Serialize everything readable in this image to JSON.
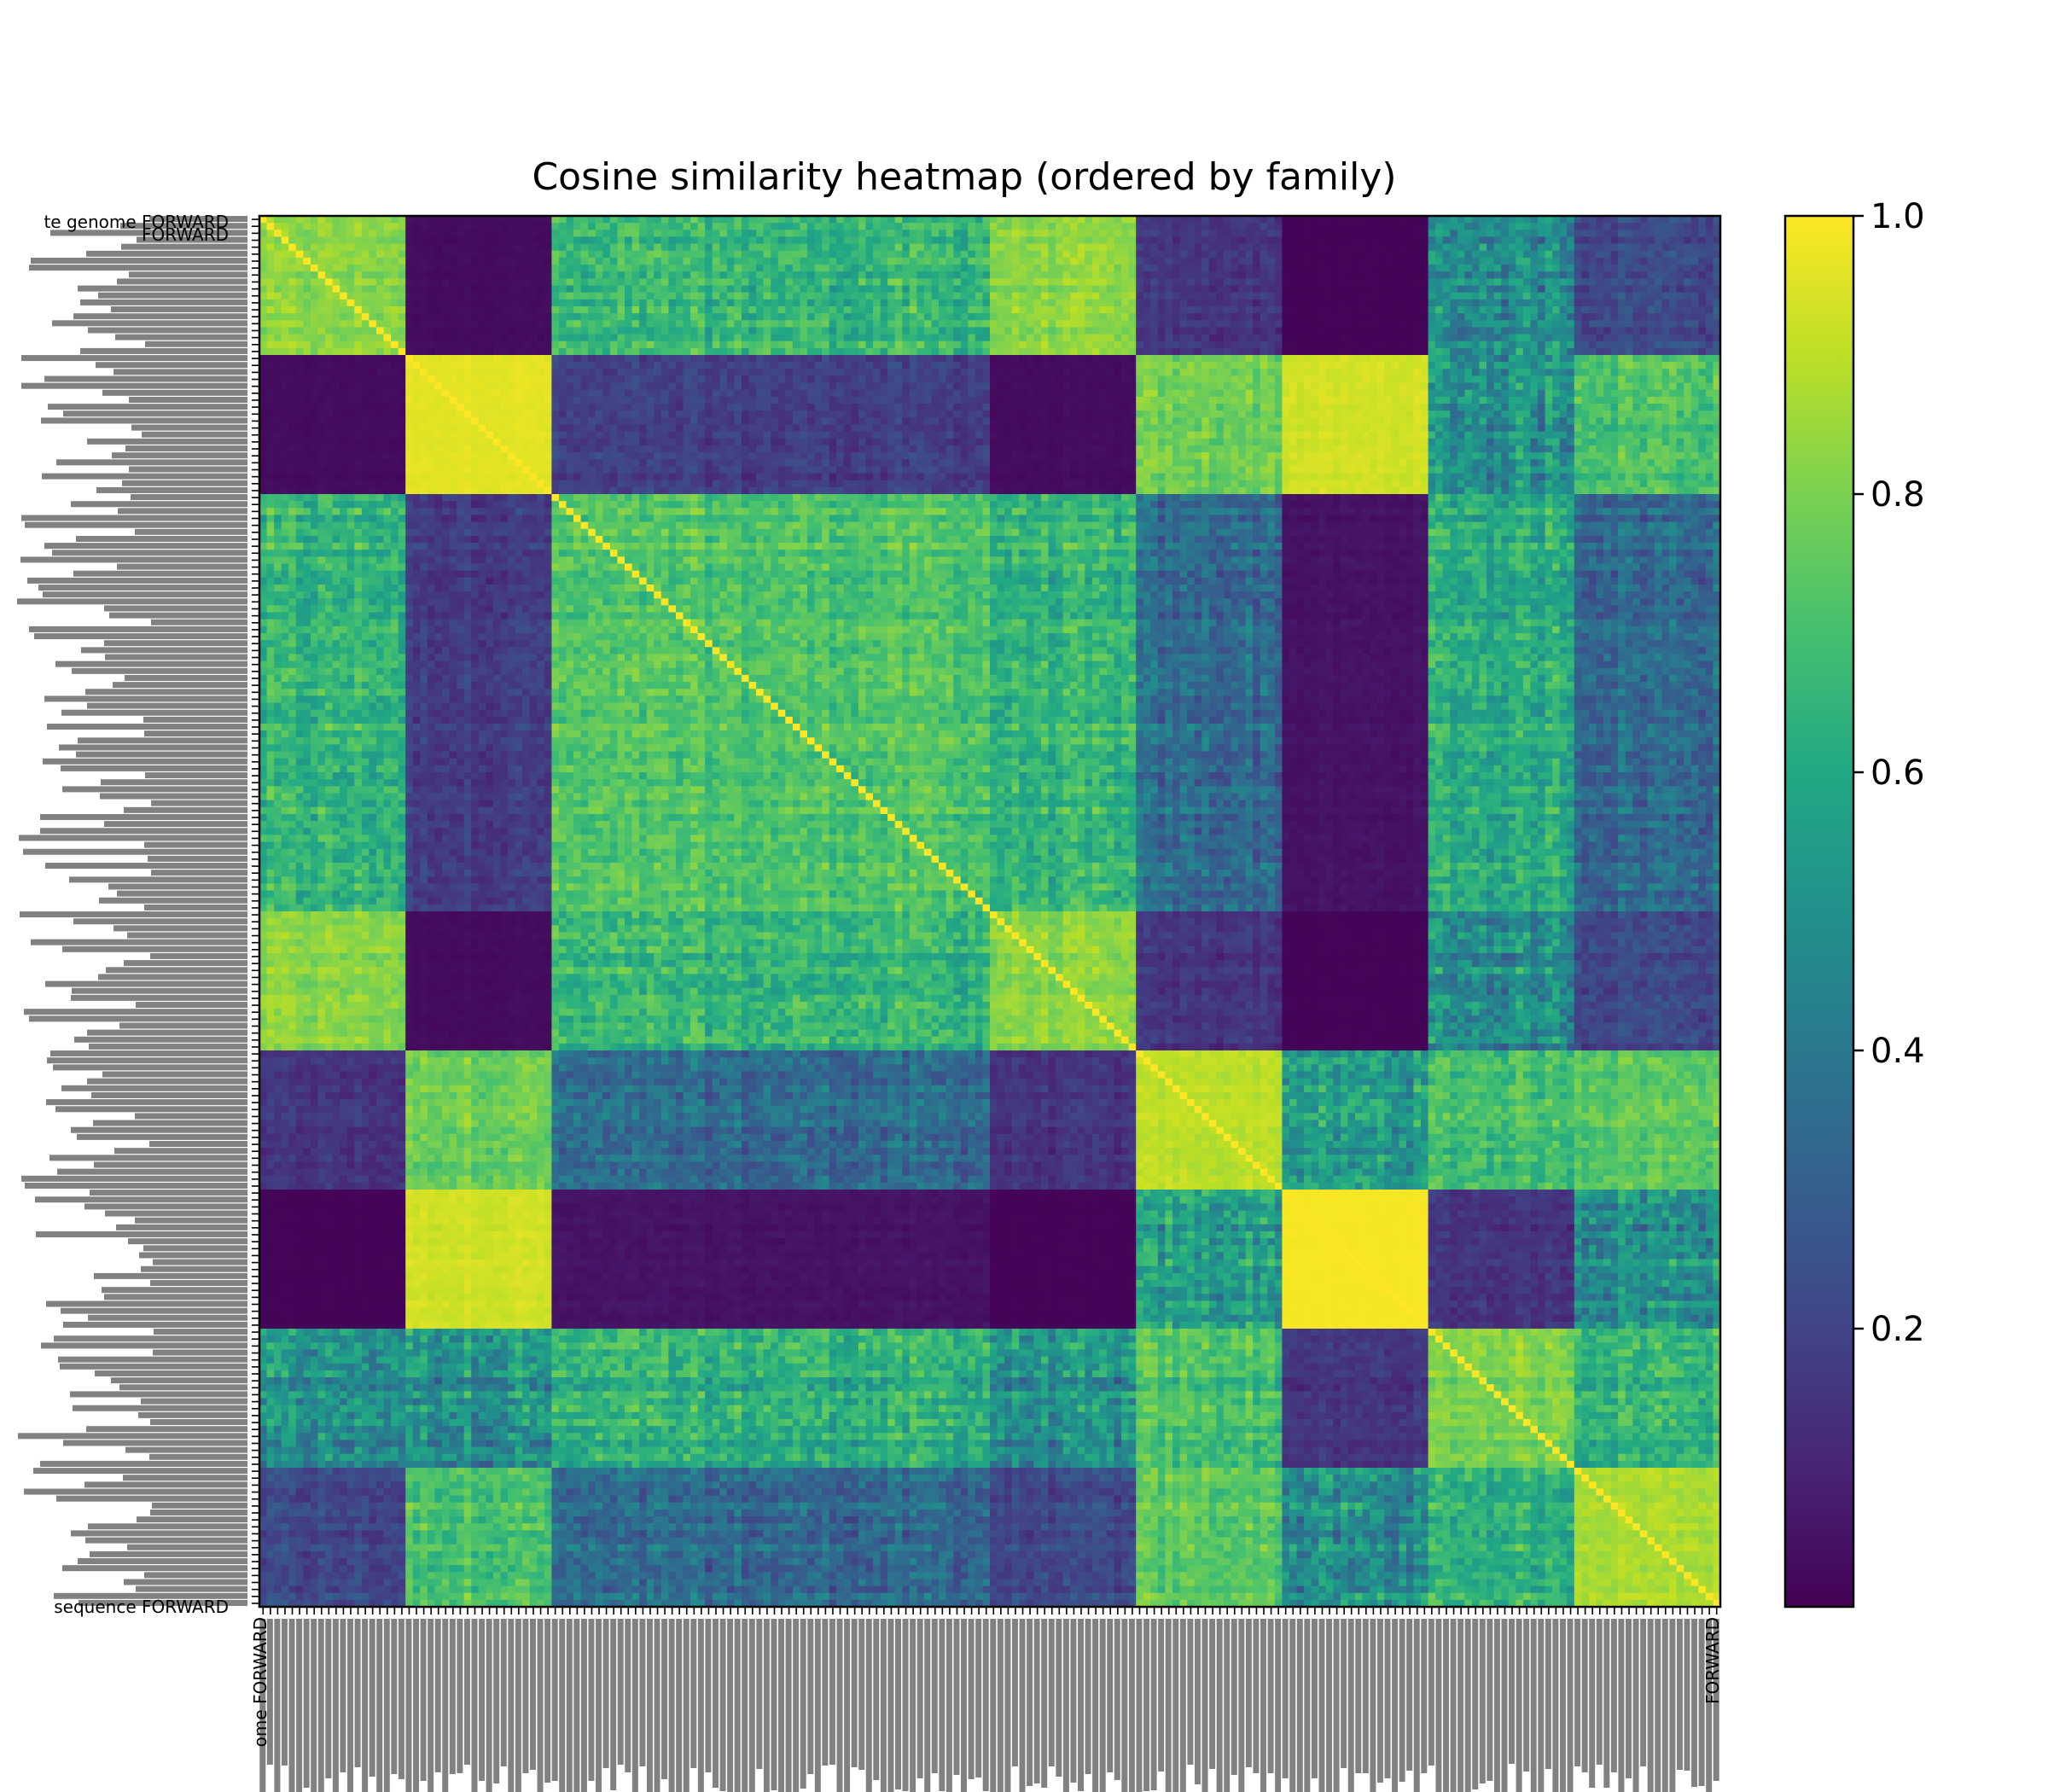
{
  "chart_data": {
    "type": "heatmap",
    "title": "Cosine similarity heatmap (ordered by family)",
    "xlabel": "",
    "ylabel": "",
    "matrix_size": 200,
    "families": [
      {
        "start": 0,
        "end": 20,
        "self": 0.82
      },
      {
        "start": 20,
        "end": 40,
        "self": 0.96
      },
      {
        "start": 40,
        "end": 100,
        "self": 0.72
      },
      {
        "start": 100,
        "end": 120,
        "self": 0.82
      },
      {
        "start": 120,
        "end": 140,
        "self": 0.9
      },
      {
        "start": 140,
        "end": 160,
        "self": 0.99
      },
      {
        "start": 160,
        "end": 180,
        "self": 0.8
      },
      {
        "start": 180,
        "end": 200,
        "self": 0.88
      }
    ],
    "block_means": [
      [
        0.82,
        0.03,
        0.65,
        0.82,
        0.15,
        0.01,
        0.48,
        0.22
      ],
      [
        0.03,
        0.96,
        0.18,
        0.03,
        0.78,
        0.93,
        0.5,
        0.72
      ],
      [
        0.65,
        0.18,
        0.72,
        0.65,
        0.35,
        0.05,
        0.62,
        0.35
      ],
      [
        0.82,
        0.03,
        0.65,
        0.82,
        0.15,
        0.01,
        0.48,
        0.22
      ],
      [
        0.15,
        0.78,
        0.35,
        0.15,
        0.9,
        0.55,
        0.7,
        0.75
      ],
      [
        0.01,
        0.93,
        0.05,
        0.01,
        0.55,
        0.99,
        0.15,
        0.5
      ],
      [
        0.48,
        0.5,
        0.62,
        0.48,
        0.7,
        0.15,
        0.8,
        0.65
      ],
      [
        0.22,
        0.72,
        0.35,
        0.22,
        0.75,
        0.5,
        0.65,
        0.88
      ]
    ],
    "colormap": "viridis",
    "colorbar": {
      "min": 0.0,
      "max": 1.0,
      "ticks": [
        "0.2",
        "0.4",
        "0.6",
        "0.8",
        "1.0"
      ]
    },
    "y_tick_labels_legible": [
      "te genome FORWARD",
      "FORWARD",
      "sequence FORWARD"
    ],
    "x_tick_labels_legible": [
      "ome FORWARD",
      "FORWARD"
    ]
  }
}
